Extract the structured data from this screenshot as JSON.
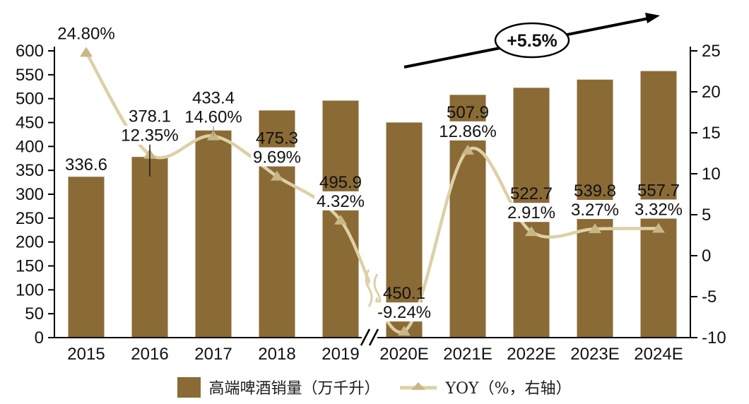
{
  "chart_data": {
    "type": "combo-bar-line",
    "title": "",
    "categories": [
      "2015",
      "2016",
      "2017",
      "2018",
      "2019",
      "2020E",
      "2021E",
      "2022E",
      "2023E",
      "2024E"
    ],
    "series": [
      {
        "name": "高端啤酒销量（万千升）",
        "type": "bar",
        "axis": "left",
        "values": [
          336.6,
          378.1,
          433.4,
          475.3,
          495.9,
          450.1,
          507.9,
          522.7,
          539.8,
          557.7
        ],
        "labels": [
          "336.6",
          "378.1",
          "433.4",
          "475.3",
          "495.9",
          "450.1",
          "507.9",
          "522.7",
          "539.8",
          "557.7"
        ]
      },
      {
        "name": "YOY（%，右轴）",
        "type": "line",
        "axis": "right",
        "values": [
          24.8,
          12.35,
          14.6,
          9.69,
          4.32,
          -9.24,
          12.86,
          2.91,
          3.27,
          3.32
        ],
        "labels": [
          "24.80%",
          "12.35%",
          "14.60%",
          "9.69%",
          "4.32%",
          "-9.24%",
          "12.86%",
          "2.91%",
          "3.27%",
          "3.32%"
        ]
      }
    ],
    "left_axis": {
      "min": 0,
      "max": 600,
      "step": 50,
      "tick_values": [
        600,
        550,
        500,
        450,
        400,
        350,
        300,
        250,
        200,
        150,
        100,
        50,
        0
      ]
    },
    "right_axis": {
      "min": -10,
      "max": 25,
      "step": 5,
      "tick_values": [
        25,
        20,
        15,
        10,
        5,
        0,
        -5,
        -10
      ]
    },
    "grid": false,
    "x_axis_break_between": [
      "2019",
      "2020E"
    ],
    "line_break_between": [
      "2019",
      "2020E"
    ],
    "label_leader_lines": [
      {
        "category_index": 1,
        "color": "#1a1a1a",
        "extend_past_marker": 31
      },
      {
        "category_index": 2,
        "color": "#9a9a9a",
        "extend_past_marker": 0
      }
    ],
    "annotation": {
      "text": "+5.5%"
    },
    "legend_position": "bottom",
    "legend": [
      {
        "label": "高端啤酒销量（万千升）",
        "swatch": "bar"
      },
      {
        "label": "YOY（%，右轴）",
        "swatch": "line-triangle"
      }
    ],
    "colors": {
      "bar": "#8a6a35",
      "line": "#ddd0a6",
      "marker": "#c9b687",
      "axis": "#000000",
      "text": "#111111",
      "annotation": "#000000",
      "label_bg": "#ffffff"
    }
  }
}
